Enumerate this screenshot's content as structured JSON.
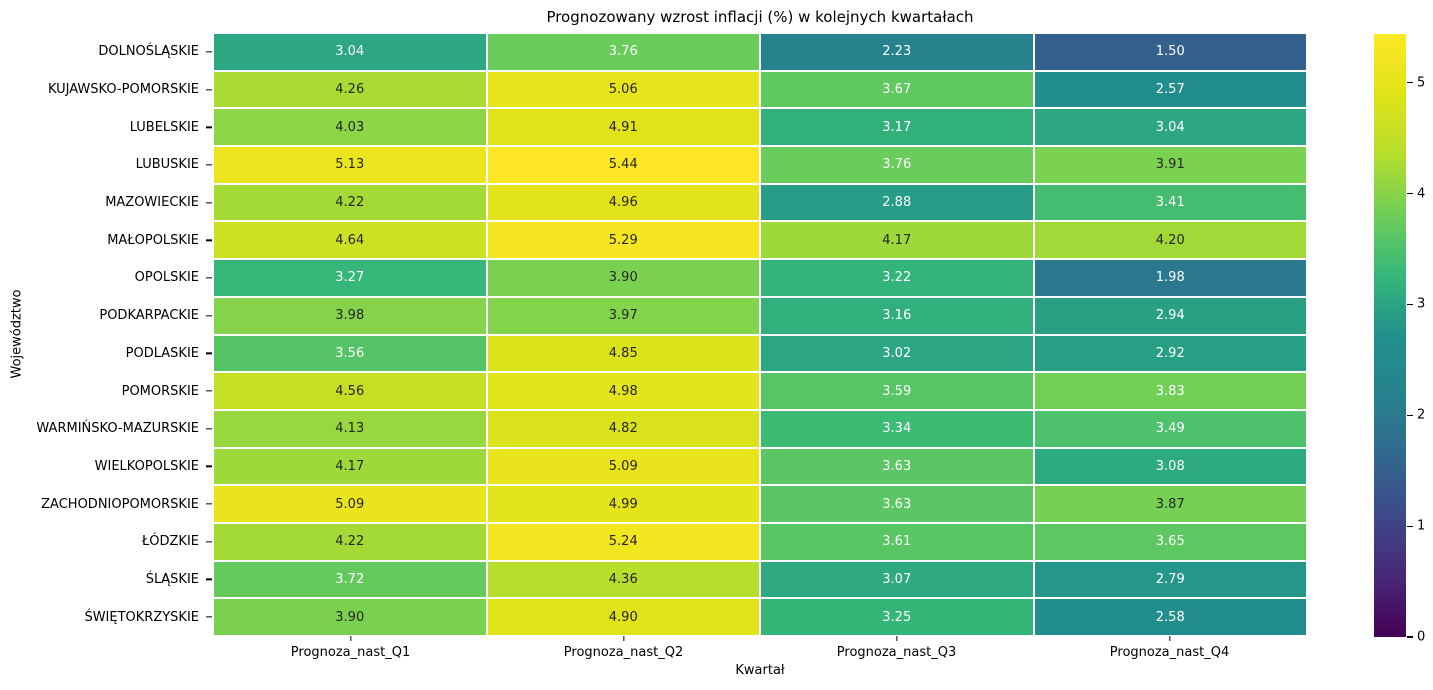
{
  "chart_data": {
    "type": "heatmap",
    "title": "Prognozowany wzrost inflacji (%) w kolejnych kwartałach",
    "xlabel": "Kwartał",
    "ylabel": "Województwo",
    "columns": [
      "Prognoza_nast_Q1",
      "Prognoza_nast_Q2",
      "Prognoza_nast_Q3",
      "Prognoza_nast_Q4"
    ],
    "rows": [
      "DOLNOŚLĄSKIE",
      "KUJAWSKO-POMORSKIE",
      "LUBELSKIE",
      "LUBUSKIE",
      "MAZOWIECKIE",
      "MAŁOPOLSKIE",
      "OPOLSKIE",
      "PODKARPACKIE",
      "PODLASKIE",
      "POMORSKIE",
      "WARMIŃSKO-MAZURSKIE",
      "WIELKOPOLSKIE",
      "ZACHODNIOPOMORSKIE",
      "ŁÓDZKIE",
      "ŚLĄSKIE",
      "ŚWIĘTOKRZYSKIE"
    ],
    "values": [
      [
        3.04,
        3.76,
        2.23,
        1.5
      ],
      [
        4.26,
        5.06,
        3.67,
        2.57
      ],
      [
        4.03,
        4.91,
        3.17,
        3.04
      ],
      [
        5.13,
        5.44,
        3.76,
        3.91
      ],
      [
        4.22,
        4.96,
        2.88,
        3.41
      ],
      [
        4.64,
        5.29,
        4.17,
        4.2
      ],
      [
        3.27,
        3.9,
        3.22,
        1.98
      ],
      [
        3.98,
        3.97,
        3.16,
        2.94
      ],
      [
        3.56,
        4.85,
        3.02,
        2.92
      ],
      [
        4.56,
        4.98,
        3.59,
        3.83
      ],
      [
        4.13,
        4.82,
        3.34,
        3.49
      ],
      [
        4.17,
        5.09,
        3.63,
        3.08
      ],
      [
        5.09,
        4.99,
        3.63,
        3.87
      ],
      [
        4.22,
        5.24,
        3.61,
        3.65
      ],
      [
        3.72,
        4.36,
        3.07,
        2.79
      ],
      [
        3.9,
        4.9,
        3.25,
        2.58
      ]
    ],
    "value_format": "0.00",
    "colormap": "viridis",
    "vmin": 0,
    "vmax": 5.44,
    "colorbar_ticks": [
      0,
      1,
      2,
      3,
      4,
      5
    ],
    "legend_position": "right colorbar",
    "grid": "white cell separators"
  },
  "colors": {
    "background": "#ffffff",
    "annotation_dark": "#262626",
    "annotation_light": "#ffffff",
    "axis_tick": "#000000",
    "viridis_stops": [
      "#440154",
      "#482878",
      "#3e4989",
      "#31688e",
      "#26828e",
      "#21918c",
      "#35b779",
      "#6ece58",
      "#b5de2b",
      "#dfe318",
      "#fde725"
    ]
  }
}
